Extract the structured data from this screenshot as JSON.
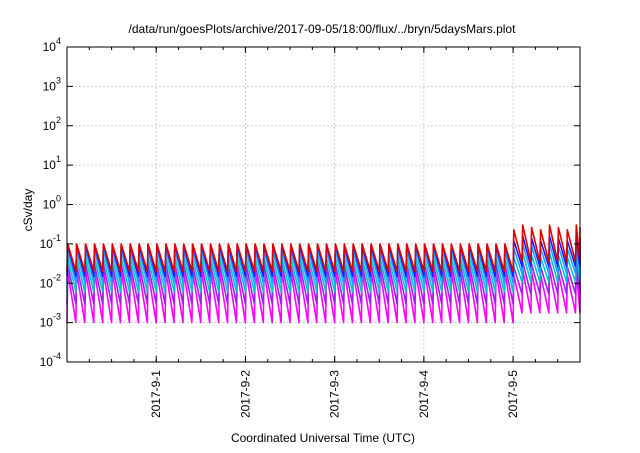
{
  "chart_data": {
    "type": "line",
    "title": "/data/run/goesPlots/archive/2017-09-05/18:00/flux/../bryn/5daysMars.plot",
    "xlabel": "Coordinated Universal Time (UTC)",
    "ylabel": "cSv/day",
    "x_range": [
      "2017-08-31T00:00",
      "2017-09-05T18:00"
    ],
    "x_ticks": [
      {
        "date": "2017-09-01",
        "label": "2017-9-1"
      },
      {
        "date": "2017-09-02",
        "label": "2017-9-2"
      },
      {
        "date": "2017-09-03",
        "label": "2017-9-3"
      },
      {
        "date": "2017-09-04",
        "label": "2017-9-4"
      },
      {
        "date": "2017-09-05",
        "label": "2017-9-5"
      }
    ],
    "y_scale": "log",
    "ylim": [
      0.0001,
      10000
    ],
    "y_ticks": [
      {
        "value": 0.0001,
        "mantissa": "10",
        "exp": "-4"
      },
      {
        "value": 0.001,
        "mantissa": "10",
        "exp": "-3"
      },
      {
        "value": 0.01,
        "mantissa": "10",
        "exp": "-2"
      },
      {
        "value": 0.1,
        "mantissa": "10",
        "exp": "-1"
      },
      {
        "value": 1,
        "mantissa": "10",
        "exp": "0"
      },
      {
        "value": 10,
        "mantissa": "10",
        "exp": "1"
      },
      {
        "value": 100,
        "mantissa": "10",
        "exp": "2"
      },
      {
        "value": 1000,
        "mantissa": "10",
        "exp": "3"
      },
      {
        "value": 10000,
        "mantissa": "10",
        "exp": "4"
      }
    ],
    "grid": true,
    "periodic_pattern": {
      "cycles_per_day": 10,
      "flare_start": "2017-09-04T22:00"
    },
    "series": [
      {
        "color": "#e00000",
        "peak": 0.1,
        "trough": 0.02,
        "flare_peak": 0.3
      },
      {
        "color": "#1a1aff",
        "peak": 0.095,
        "trough": 0.015,
        "flare_peak": 0.16
      },
      {
        "color": "#1aa3ff",
        "peak": 0.07,
        "trough": 0.01,
        "flare_peak": 0.1
      },
      {
        "color": "#00c8c8",
        "peak": 0.045,
        "trough": 0.006,
        "flare_peak": 0.06
      },
      {
        "color": "#a020f0",
        "peak": 0.03,
        "trough": 0.003,
        "flare_peak": 0.035
      },
      {
        "color": "#ff00ff",
        "peak": 0.02,
        "trough": 0.001,
        "flare_peak": 0.022
      }
    ]
  }
}
